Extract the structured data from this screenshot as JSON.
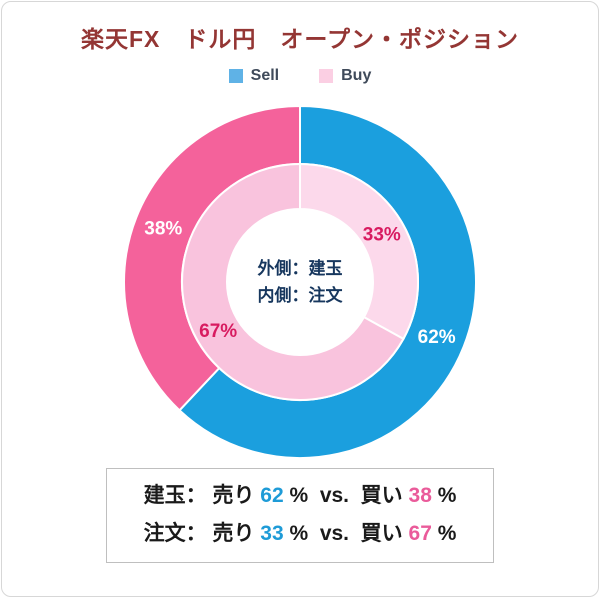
{
  "frame": {
    "border_color": "#d7d7d7"
  },
  "title": {
    "text": "楽天FX　ドル円　オープン・ポジション",
    "color": "#943634"
  },
  "legend": {
    "text_color": "#3f4a5a",
    "items": [
      {
        "label": "Sell",
        "color": "#5fb2e6"
      },
      {
        "label": "Buy",
        "color": "#fbcfe3"
      }
    ]
  },
  "chart_data": {
    "type": "donut",
    "title": "楽天FX ドル円 オープン・ポジション",
    "start_angle_deg": 0,
    "clockwise": true,
    "center_label": {
      "line1": "外側：建玉",
      "line2": "内側：注文",
      "color": "#17375e"
    },
    "rings": [
      {
        "name": "建玉",
        "position": "outer",
        "segments": [
          {
            "label": "Sell",
            "value": 62,
            "color": "#1b9fde",
            "label_color": "#ffffff"
          },
          {
            "label": "Buy",
            "value": 38,
            "color": "#f4629b",
            "label_color": "#ffffff"
          }
        ]
      },
      {
        "name": "注文",
        "position": "inner",
        "segments": [
          {
            "label": "Sell",
            "value": 33,
            "color": "#fcd9eb",
            "label_color": "#d81b60"
          },
          {
            "label": "Buy",
            "value": 67,
            "color": "#f9c3dd",
            "label_color": "#d81b60"
          }
        ]
      }
    ]
  },
  "summary": {
    "border_color": "#bfbfbf",
    "rows": [
      {
        "tokens": [
          {
            "text": "建玉： 売り ",
            "color": "#1a1a1a"
          },
          {
            "text": "62",
            "color": "#1e9bd7"
          },
          {
            "text": " %  vs.  買い ",
            "color": "#1a1a1a"
          },
          {
            "text": "38",
            "color": "#ea5b9a"
          },
          {
            "text": " %",
            "color": "#1a1a1a"
          }
        ]
      },
      {
        "tokens": [
          {
            "text": "注文： 売り ",
            "color": "#1a1a1a"
          },
          {
            "text": "33",
            "color": "#1e9bd7"
          },
          {
            "text": " %  vs.  買い ",
            "color": "#1a1a1a"
          },
          {
            "text": "67",
            "color": "#ea5b9a"
          },
          {
            "text": " %",
            "color": "#1a1a1a"
          }
        ]
      }
    ]
  }
}
